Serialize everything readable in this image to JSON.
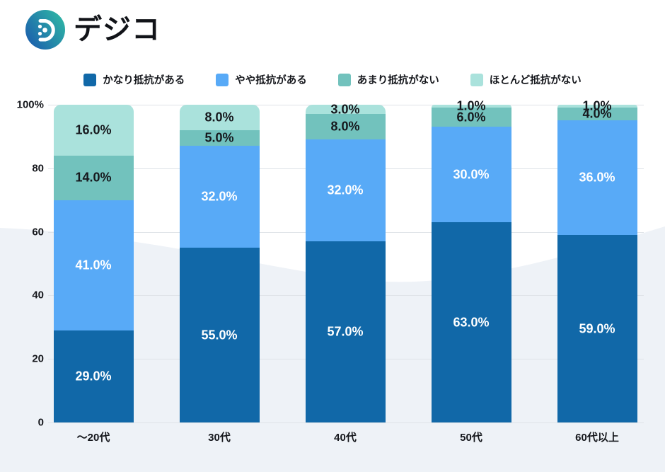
{
  "logo": {
    "text": "デジコ",
    "icon": "digico-logo-icon"
  },
  "colors": {
    "background": "#ffffff",
    "background_wave": "#eef2f7",
    "gridline": "#dfe3e8",
    "axis_text": "#15171c",
    "logo_gradient_start": "#1b5cad",
    "logo_gradient_end": "#2fb8a5"
  },
  "chart_data": {
    "type": "bar",
    "stacked": true,
    "orientation": "vertical",
    "title": "",
    "legend_position": "top",
    "grid": true,
    "categories": [
      "～20代",
      "30代",
      "40代",
      "50代",
      "60代以上"
    ],
    "series": [
      {
        "name": "かなり抵抗がある",
        "color": "#1168a8",
        "label_color": "#ffffff",
        "values": [
          29.0,
          55.0,
          57.0,
          63.0,
          59.0
        ],
        "labels": [
          "29.0%",
          "55.0%",
          "57.0%",
          "63.0%",
          "59.0%"
        ]
      },
      {
        "name": "やや抵抗がある",
        "color": "#58aaf7",
        "label_color": "#ffffff",
        "values": [
          41.0,
          32.0,
          32.0,
          30.0,
          36.0
        ],
        "labels": [
          "41.0%",
          "32.0%",
          "32.0%",
          "30.0%",
          "36.0%"
        ]
      },
      {
        "name": "あまり抵抗がない",
        "color": "#72c2bd",
        "label_color": "#16181d",
        "values": [
          14.0,
          5.0,
          8.0,
          6.0,
          4.0
        ],
        "labels": [
          "14.0%",
          "5.0%",
          "8.0%",
          "6.0%",
          "4.0%"
        ]
      },
      {
        "name": "ほとんど抵抗がない",
        "color": "#aae2dc",
        "label_color": "#16181d",
        "values": [
          16.0,
          8.0,
          3.0,
          1.0,
          1.0
        ],
        "labels": [
          "16.0%",
          "8.0%",
          "3.0%",
          "1.0%",
          "1.0%"
        ]
      }
    ],
    "y_axis": {
      "ticks": [
        "100%",
        "80",
        "60",
        "40",
        "20",
        "0"
      ],
      "tick_values": [
        100,
        80,
        60,
        40,
        20,
        0
      ],
      "min": 0,
      "max": 100
    }
  }
}
